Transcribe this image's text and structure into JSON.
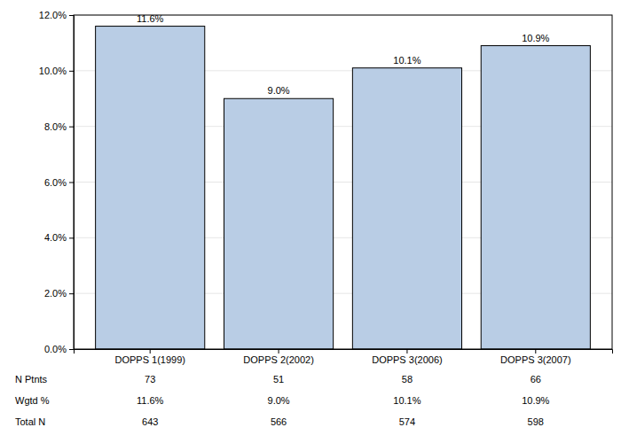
{
  "chart_data": {
    "type": "bar",
    "categories": [
      "DOPPS 1(1999)",
      "DOPPS 2(2002)",
      "DOPPS 3(2006)",
      "DOPPS 3(2007)"
    ],
    "values": [
      11.6,
      9.0,
      10.1,
      10.9
    ],
    "value_labels": [
      "11.6%",
      "9.0%",
      "10.1%",
      "10.9%"
    ],
    "color": "#b9cde5",
    "ylim": [
      0,
      12
    ],
    "yticks": [
      {
        "value": 0,
        "label": "0.0%"
      },
      {
        "value": 2,
        "label": "2.0%"
      },
      {
        "value": 4,
        "label": "4.0%"
      },
      {
        "value": 6,
        "label": "6.0%"
      },
      {
        "value": 8,
        "label": "8.0%"
      },
      {
        "value": 10,
        "label": "10.0%"
      },
      {
        "value": 12,
        "label": "12.0%"
      }
    ],
    "grid": true,
    "data_labels": true,
    "table": {
      "rows": [
        {
          "label": "N Ptnts",
          "values": [
            73,
            51,
            58,
            66
          ]
        },
        {
          "label": "Wgtd %",
          "values": [
            "11.6%",
            "9.0%",
            "10.1%",
            "10.9%"
          ]
        },
        {
          "label": "Total N",
          "values": [
            643,
            566,
            574,
            598
          ]
        }
      ]
    }
  }
}
